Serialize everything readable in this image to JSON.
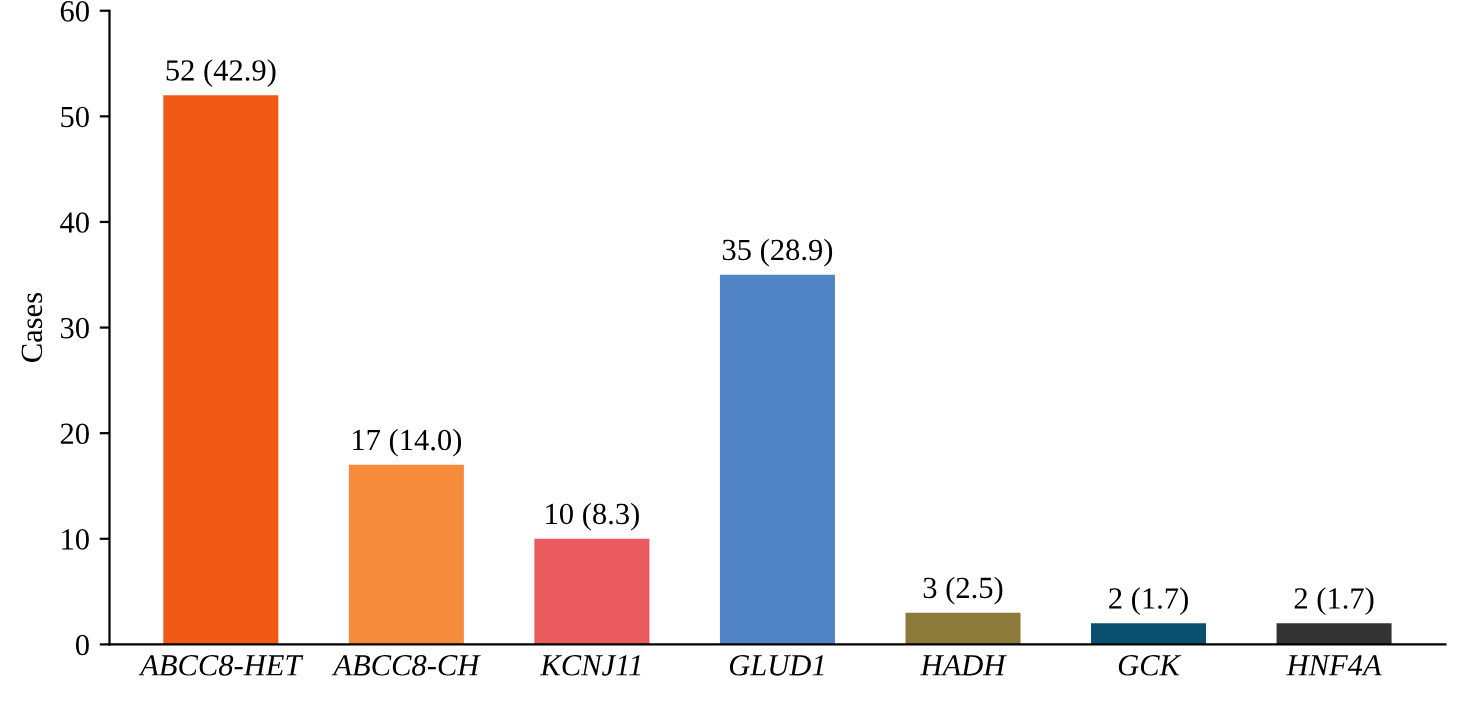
{
  "chart_data": {
    "type": "bar",
    "ylabel": "Cases",
    "categories": [
      "ABCC8-HET",
      "ABCC8-CH",
      "KCNJ11",
      "GLUD1",
      "HADH",
      "GCK",
      "HNF4A"
    ],
    "values": [
      52,
      17,
      10,
      35,
      3,
      2,
      2
    ],
    "colors": [
      "#f05a14",
      "#f78b3c",
      "#e85a5e",
      "#5285c8",
      "#8b7a3a",
      "#0b4f6e",
      "#333333"
    ],
    "value_labels": [
      "52 (42.9)",
      "17 (14.0)",
      "10 (8.3)",
      "35 (28.9)",
      "3 (2.5)",
      "2 (1.7)",
      "2 (1.7)"
    ],
    "ylim": [
      0,
      60
    ],
    "yticks": [
      0,
      10,
      20,
      30,
      40,
      50,
      60
    ],
    "grid": false,
    "legend": false
  }
}
